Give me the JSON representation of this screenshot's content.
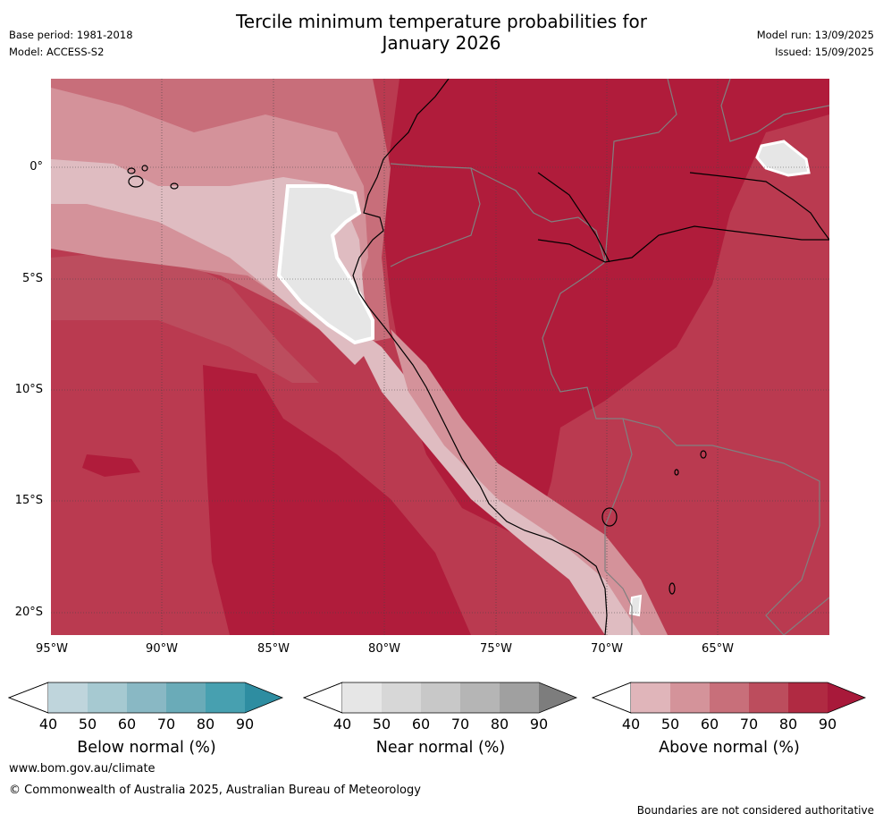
{
  "title": {
    "line1": "Tercile minimum temperature probabilities for",
    "line2": "January 2026"
  },
  "meta_left": {
    "base_period": "Base period: 1981-2018",
    "model": "Model: ACCESS-S2"
  },
  "meta_right": {
    "model_run": "Model run: 13/09/2025",
    "issued": "Issued: 15/09/2025"
  },
  "axes": {
    "lat_ticks": [
      "0°",
      "5°S",
      "10°S",
      "15°S",
      "20°S"
    ],
    "lon_ticks": [
      "95°W",
      "90°W",
      "85°W",
      "80°W",
      "75°W",
      "70°W",
      "65°W"
    ]
  },
  "colorbars": [
    {
      "label": "Below normal (%)",
      "ticks": [
        "40",
        "50",
        "60",
        "70",
        "80",
        "90"
      ],
      "colors": [
        "#bfd5dc",
        "#a6c9d1",
        "#89b8c4",
        "#6aabb8",
        "#47a0b0",
        "#2e8da1"
      ]
    },
    {
      "label": "Near normal (%)",
      "ticks": [
        "40",
        "50",
        "60",
        "70",
        "80",
        "90"
      ],
      "colors": [
        "#e6e6e6",
        "#d7d7d7",
        "#c8c8c8",
        "#b5b5b5",
        "#a0a0a0",
        "#7d7d7d"
      ]
    },
    {
      "label": "Above normal (%)",
      "ticks": [
        "40",
        "50",
        "60",
        "70",
        "80",
        "90"
      ],
      "colors": [
        "#e0b5ba",
        "#d4939a",
        "#c86f7a",
        "#bc4d5d",
        "#b02a42",
        "#a8193a"
      ]
    }
  ],
  "map_colors": {
    "p40": "#dfbcc1",
    "p50": "#d4929a",
    "p60": "#c86e7a",
    "p70": "#bc4d5e",
    "p80": "#ba3a50",
    "p90": "#b01c3b",
    "near40": "#e6e6e6",
    "country_border": "#808080",
    "coast": "#000000"
  },
  "footer": {
    "url": "www.bom.gov.au/climate",
    "copyright": "© Commonwealth of Australia 2025, Australian Bureau of Meteorology",
    "disclaimer": "Boundaries are not considered authoritative"
  }
}
